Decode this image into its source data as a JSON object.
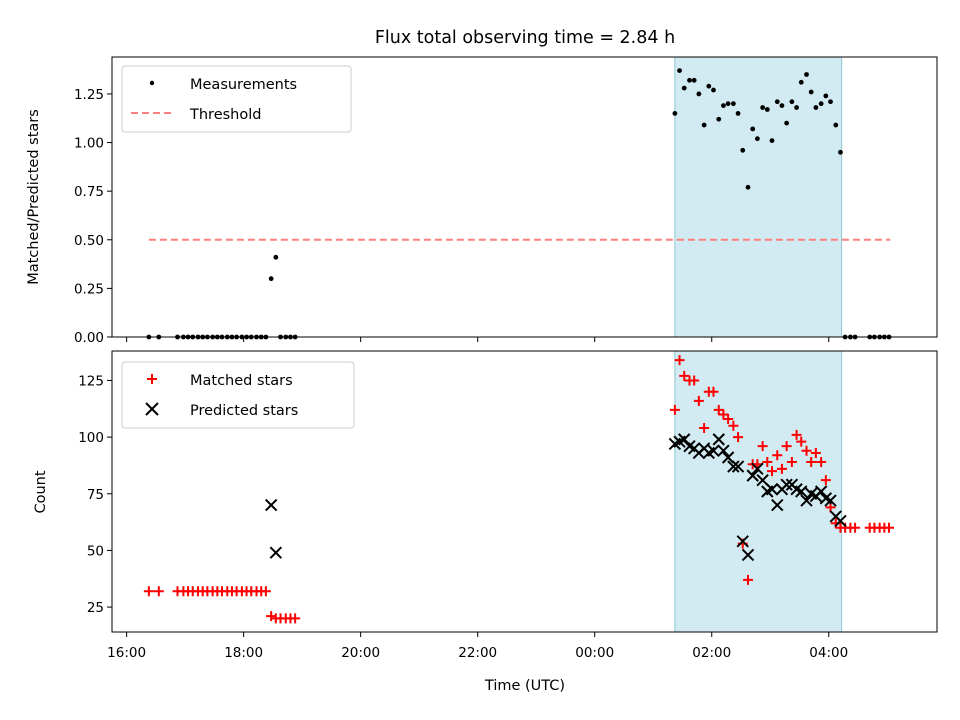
{
  "chart_data": [
    {
      "type": "scatter",
      "title": "Flux total observing time = 2.84 h",
      "ylabel": "Matched/Predicted stars",
      "xlabel": "",
      "xlim_hours": [
        15.75,
        29.85
      ],
      "ylim": [
        0,
        1.44
      ],
      "x_tick_hours": [
        16,
        18,
        20,
        22,
        24,
        26,
        28
      ],
      "y_ticks": [
        "0.00",
        "0.25",
        "0.50",
        "0.75",
        "1.00",
        "1.25"
      ],
      "y_tick_values": [
        0,
        0.25,
        0.5,
        0.75,
        1.0,
        1.25
      ],
      "grid": false,
      "legend_position": "upper-left",
      "highlight_span_hours": [
        25.37,
        28.22
      ],
      "highlight_color": "#add8e6",
      "threshold": {
        "name": "Threshold",
        "value": 0.5,
        "x_hours": [
          16.38,
          29.05
        ],
        "color": "#ff7f7f"
      },
      "series": [
        {
          "name": "Measurements",
          "color": "#000000",
          "x_hours": [
            16.38,
            16.55,
            16.87,
            16.97,
            17.05,
            17.13,
            17.22,
            17.3,
            17.38,
            17.47,
            17.55,
            17.63,
            17.72,
            17.8,
            17.88,
            17.97,
            18.05,
            18.13,
            18.22,
            18.3,
            18.38,
            18.47,
            18.55,
            18.63,
            18.72,
            18.8,
            18.88,
            25.37,
            25.45,
            25.53,
            25.62,
            25.7,
            25.78,
            25.87,
            25.95,
            26.03,
            26.12,
            26.2,
            26.28,
            26.37,
            26.45,
            26.53,
            26.62,
            26.7,
            26.78,
            26.87,
            26.95,
            27.03,
            27.12,
            27.2,
            27.28,
            27.37,
            27.45,
            27.53,
            27.62,
            27.7,
            27.78,
            27.87,
            27.95,
            28.03,
            28.12,
            28.2,
            28.28,
            28.37,
            28.45,
            28.7,
            28.78,
            28.87,
            28.95,
            29.03
          ],
          "y": [
            0,
            0,
            0,
            0,
            0,
            0,
            0,
            0,
            0,
            0,
            0,
            0,
            0,
            0,
            0,
            0,
            0,
            0,
            0,
            0,
            0,
            0.3,
            0.41,
            0,
            0,
            0,
            0,
            1.15,
            1.37,
            1.28,
            1.32,
            1.32,
            1.25,
            1.09,
            1.29,
            1.27,
            1.12,
            1.19,
            1.2,
            1.2,
            1.15,
            0.96,
            0.77,
            1.07,
            1.02,
            1.18,
            1.17,
            1.01,
            1.21,
            1.19,
            1.1,
            1.21,
            1.18,
            1.31,
            1.35,
            1.26,
            1.18,
            1.2,
            1.24,
            1.21,
            1.09,
            0.95,
            0,
            0,
            0,
            0,
            0,
            0,
            0,
            0
          ]
        }
      ]
    },
    {
      "type": "scatter",
      "title": "",
      "ylabel": "Count",
      "xlabel": "Time (UTC)",
      "xlim_hours": [
        15.75,
        29.85
      ],
      "ylim": [
        14,
        138
      ],
      "x_ticks": [
        "16:00",
        "18:00",
        "20:00",
        "22:00",
        "00:00",
        "02:00",
        "04:00"
      ],
      "x_tick_hours": [
        16,
        18,
        20,
        22,
        24,
        26,
        28
      ],
      "y_ticks": [
        "25",
        "50",
        "75",
        "100",
        "125"
      ],
      "y_tick_values": [
        25,
        50,
        75,
        100,
        125
      ],
      "grid": false,
      "legend_position": "upper-left",
      "highlight_span_hours": [
        25.37,
        28.22
      ],
      "highlight_color": "#add8e6",
      "series": [
        {
          "name": "Matched stars",
          "marker": "+",
          "color": "#ff0000",
          "x_hours": [
            16.38,
            16.55,
            16.87,
            16.97,
            17.05,
            17.13,
            17.22,
            17.3,
            17.38,
            17.47,
            17.55,
            17.63,
            17.72,
            17.8,
            17.88,
            17.97,
            18.05,
            18.13,
            18.22,
            18.3,
            18.38,
            18.47,
            18.55,
            18.63,
            18.72,
            18.8,
            18.88,
            25.37,
            25.45,
            25.53,
            25.62,
            25.7,
            25.78,
            25.87,
            25.95,
            26.03,
            26.12,
            26.2,
            26.28,
            26.37,
            26.45,
            26.53,
            26.62,
            26.7,
            26.78,
            26.87,
            26.95,
            27.03,
            27.12,
            27.2,
            27.28,
            27.37,
            27.45,
            27.53,
            27.62,
            27.7,
            27.78,
            27.87,
            27.95,
            28.03,
            28.12,
            28.2,
            28.28,
            28.37,
            28.45,
            28.7,
            28.78,
            28.87,
            28.95,
            29.03
          ],
          "y": [
            32,
            32,
            32,
            32,
            32,
            32,
            32,
            32,
            32,
            32,
            32,
            32,
            32,
            32,
            32,
            32,
            32,
            32,
            32,
            32,
            32,
            21,
            20,
            20,
            20,
            20,
            20,
            112,
            134,
            127,
            125,
            125,
            116,
            104,
            120,
            120,
            112,
            110,
            108,
            105,
            100,
            53,
            37,
            88,
            88,
            96,
            89,
            85,
            92,
            86,
            96,
            89,
            101,
            98,
            94,
            89,
            93,
            89,
            81,
            69,
            62,
            60,
            60,
            60,
            60,
            60,
            60,
            60,
            60,
            60
          ]
        },
        {
          "name": "Predicted stars",
          "marker": "x",
          "color": "#000000",
          "x_hours": [
            18.47,
            18.55,
            25.37,
            25.45,
            25.53,
            25.62,
            25.7,
            25.78,
            25.87,
            25.95,
            26.03,
            26.12,
            26.2,
            26.28,
            26.37,
            26.45,
            26.53,
            26.62,
            26.7,
            26.78,
            26.87,
            26.95,
            27.03,
            27.12,
            27.2,
            27.28,
            27.37,
            27.45,
            27.53,
            27.62,
            27.7,
            27.78,
            27.87,
            27.95,
            28.03,
            28.12,
            28.2
          ],
          "y": [
            70,
            49,
            97,
            98,
            99,
            96,
            95,
            93,
            95,
            93,
            94,
            99,
            94,
            91,
            87,
            87,
            54,
            48,
            83,
            86,
            81,
            76,
            77,
            70,
            77,
            79,
            79,
            77,
            76,
            72,
            75,
            74,
            76,
            73,
            72,
            65,
            63
          ]
        }
      ]
    }
  ]
}
